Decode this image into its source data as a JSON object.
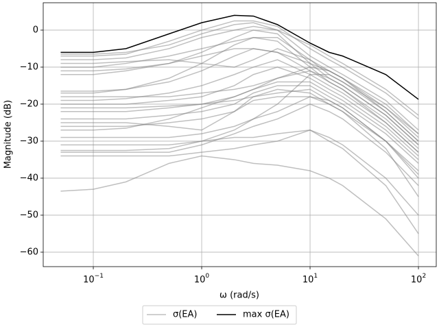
{
  "chart_data": {
    "type": "line",
    "x_scale": "log",
    "grid": true,
    "legend": "lower center outside",
    "xlabel": "ω (rad/s)",
    "ylabel": "Magnitude (dB)",
    "x": [
      0.05,
      0.1,
      0.2,
      0.5,
      1,
      2,
      3,
      5,
      10,
      15,
      20,
      50,
      100
    ],
    "xlim": [
      0.0345,
      146
    ],
    "ylim": [
      -63.9,
      7.4
    ],
    "xticks": [
      {
        "value": 0.1,
        "label": "10",
        "exponent": "−1"
      },
      {
        "value": 1,
        "label": "10",
        "exponent": "0"
      },
      {
        "value": 10,
        "label": "10",
        "exponent": "1"
      },
      {
        "value": 100,
        "label": "10",
        "exponent": "2"
      }
    ],
    "yticks": [
      0,
      {
        "value": -10,
        "label": "−10"
      },
      {
        "value": -20,
        "label": "−20"
      },
      {
        "value": -30,
        "label": "−30"
      },
      {
        "value": -40,
        "label": "−40"
      },
      {
        "value": -50,
        "label": "−50"
      },
      {
        "value": -60,
        "label": "−60"
      }
    ],
    "series": [
      {
        "name": "σ(EA)",
        "color": "#808080",
        "alpha": 0.5,
        "lines": [
          [
            -7,
            -7,
            -6.5,
            -3,
            0,
            2.5,
            2.5,
            1,
            -5,
            -8,
            -10,
            -17,
            -24
          ],
          [
            -8,
            -8,
            -7.5,
            -5,
            -2,
            0,
            1,
            0,
            -7,
            -10,
            -12,
            -19,
            -27
          ],
          [
            -10,
            -10,
            -9,
            -7,
            -5,
            -3,
            -2,
            -2,
            -8,
            -12,
            -14,
            -21,
            -29
          ],
          [
            -12,
            -12,
            -11,
            -9,
            -6,
            -2,
            0,
            -1,
            -9,
            -13,
            -15,
            -23,
            -31
          ],
          [
            -17,
            -17,
            -16,
            -13,
            -9,
            -4,
            -2,
            -3,
            -10,
            -14,
            -16,
            -24,
            -32
          ],
          [
            -19,
            -19,
            -18.5,
            -17,
            -15,
            -12,
            -10,
            -8,
            -12,
            -15,
            -17,
            -25,
            -33
          ],
          [
            -20,
            -20,
            -20,
            -19,
            -18,
            -15,
            -12,
            -10,
            -13,
            -16,
            -18,
            -26,
            -34
          ],
          [
            -22,
            -22,
            -22,
            -21,
            -20,
            -18,
            -16,
            -14,
            -14,
            -17,
            -19,
            -27,
            -35
          ],
          [
            -24,
            -24,
            -24,
            -23,
            -22,
            -20,
            -17,
            -15,
            -15,
            -18,
            -20,
            -28,
            -36
          ],
          [
            -26,
            -26,
            -26,
            -25,
            -24,
            -22,
            -19,
            -18,
            -18,
            -20,
            -22,
            -30,
            -38
          ],
          [
            -27,
            -27,
            -26.5,
            -24,
            -21,
            -18,
            -16,
            -13,
            -10,
            -11,
            -13,
            -20,
            -28
          ],
          [
            -29,
            -29,
            -29,
            -29,
            -28,
            -26,
            -24,
            -20,
            -12,
            -12,
            -14,
            -22,
            -30
          ],
          [
            -33,
            -33,
            -33,
            -33,
            -31,
            -28,
            -26,
            -24,
            -20,
            -22,
            -24,
            -33,
            -42
          ],
          [
            -34,
            -34,
            -34,
            -34,
            -33,
            -32,
            -31,
            -30,
            -27,
            -29,
            -31,
            -40,
            -50
          ],
          [
            -43.5,
            -43,
            -41,
            -36,
            -34,
            -35,
            -36,
            -36.5,
            -38,
            -40,
            -42,
            -51,
            -61
          ],
          [
            -32.5,
            -32.5,
            -32.5,
            -32,
            -30,
            -29,
            -29,
            -28,
            -27,
            -30,
            -32,
            -42,
            -55
          ],
          [
            -6.5,
            -6.5,
            -6,
            -4,
            -1,
            1.5,
            2,
            0,
            -4,
            -7,
            -9,
            -16,
            -23
          ],
          [
            -9,
            -9,
            -8.5,
            -8,
            -9,
            -10,
            -8,
            -5,
            -8,
            -11,
            -13,
            -22,
            -30
          ],
          [
            -16.5,
            -16.5,
            -16,
            -14,
            -11,
            -7,
            -5,
            -6,
            -11,
            -14,
            -16,
            -25,
            -33
          ],
          [
            -25,
            -25,
            -25,
            -26,
            -27,
            -22,
            -18,
            -16,
            -17,
            -20,
            -22,
            -32,
            -45
          ],
          [
            -21,
            -21,
            -21,
            -20.5,
            -20,
            -19,
            -18,
            -17,
            -16,
            -19,
            -21,
            -30,
            -40
          ],
          [
            -11,
            -11,
            -10.5,
            -9,
            -7,
            -5,
            -5,
            -6,
            -9,
            -11,
            -13,
            -21,
            -28
          ],
          [
            -18,
            -18,
            -18,
            -18,
            -17,
            -16,
            -15,
            -13,
            -11,
            -13,
            -15,
            -23,
            -31
          ],
          [
            -31,
            -31,
            -31,
            -31,
            -30,
            -27,
            -24,
            -22,
            -18,
            -19,
            -21,
            -30,
            -39
          ]
        ]
      },
      {
        "name": "max σ(EA)",
        "color": "#000000",
        "alpha": 1,
        "lines": [
          [
            -6,
            -6,
            -5,
            -1,
            2,
            4,
            3.8,
            1.5,
            -3.5,
            -6,
            -7,
            -12,
            -18.7
          ]
        ]
      }
    ]
  }
}
